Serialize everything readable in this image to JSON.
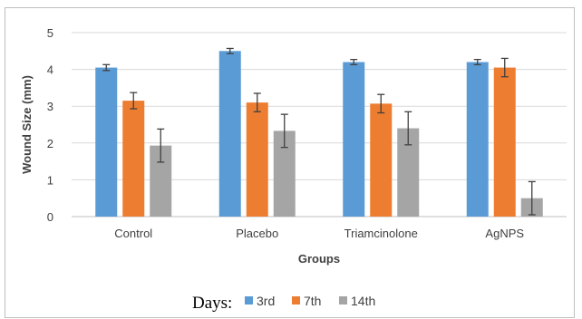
{
  "chart_data": {
    "type": "bar",
    "categories": [
      "Control",
      "Placebo",
      "Triamcinolone",
      "AgNPS"
    ],
    "series": [
      {
        "name": "3rd",
        "color": "#5b9bd5",
        "values": [
          4.05,
          4.5,
          4.2,
          4.2
        ],
        "errors": [
          0.08,
          0.07,
          0.07,
          0.07
        ]
      },
      {
        "name": "7th",
        "color": "#ed7d31",
        "values": [
          3.15,
          3.1,
          3.07,
          4.05
        ],
        "errors": [
          0.22,
          0.25,
          0.25,
          0.25
        ]
      },
      {
        "name": "14th",
        "color": "#a5a5a5",
        "values": [
          1.93,
          2.33,
          2.4,
          0.5
        ],
        "errors": [
          0.45,
          0.45,
          0.45,
          0.45
        ]
      }
    ],
    "ylim": [
      0,
      5
    ],
    "yticks": [
      "0",
      "1",
      "2",
      "3",
      "4",
      "5"
    ],
    "ylabel": "Wound Size (mm)",
    "xlabel": "Groups",
    "legend_title": "Days:",
    "legend_position": "bottom",
    "grid": true,
    "gridColor": "#d9d9d9"
  }
}
